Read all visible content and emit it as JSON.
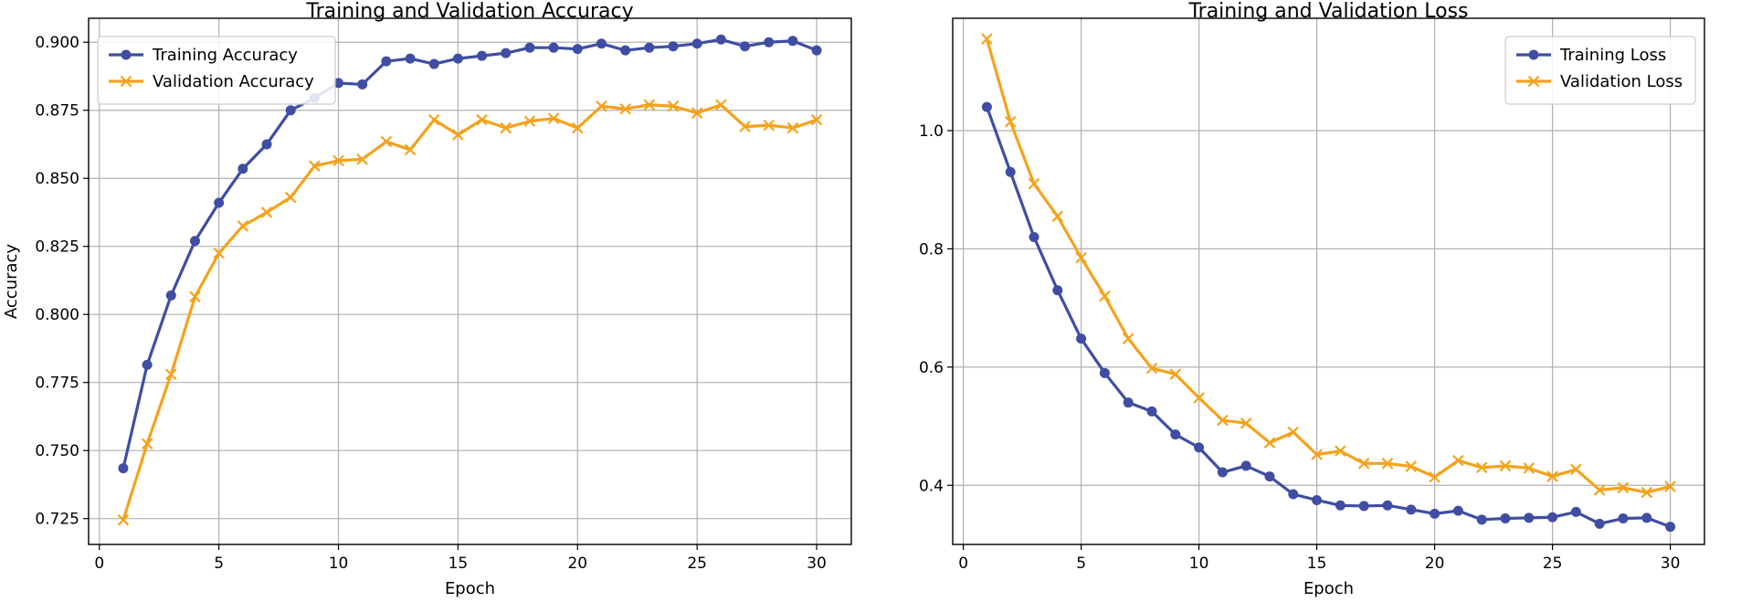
{
  "chart_data": [
    {
      "type": "line",
      "title": "Training and Validation Accuracy",
      "xlabel": "Epoch",
      "ylabel": "Accuracy",
      "xlim": [
        -0.45,
        31.45
      ],
      "ylim": [
        0.7155,
        0.9088
      ],
      "xticks": [
        0,
        5,
        10,
        15,
        20,
        25,
        30
      ],
      "yticks": [
        0.725,
        0.75,
        0.775,
        0.8,
        0.825,
        0.85,
        0.875,
        0.9
      ],
      "ytick_format": 3,
      "grid": true,
      "legend_position": "top-left",
      "x": [
        1,
        2,
        3,
        4,
        5,
        6,
        7,
        8,
        9,
        10,
        11,
        12,
        13,
        14,
        15,
        16,
        17,
        18,
        19,
        20,
        21,
        22,
        23,
        24,
        25,
        26,
        27,
        28,
        29,
        30
      ],
      "series": [
        {
          "name": "Training Accuracy",
          "color": "#3f4ea3",
          "marker": "circle",
          "values": [
            0.7435,
            0.7815,
            0.807,
            0.827,
            0.841,
            0.8535,
            0.8625,
            0.875,
            0.8795,
            0.885,
            0.8845,
            0.893,
            0.894,
            0.892,
            0.894,
            0.895,
            0.896,
            0.898,
            0.898,
            0.8975,
            0.8995,
            0.897,
            0.898,
            0.8985,
            0.8995,
            0.901,
            0.8985,
            0.9,
            0.9005,
            0.897
          ]
        },
        {
          "name": "Validation Accuracy",
          "color": "#f5a21b",
          "marker": "x",
          "values": [
            0.7245,
            0.7525,
            0.778,
            0.8065,
            0.8225,
            0.8325,
            0.8375,
            0.843,
            0.8545,
            0.8565,
            0.857,
            0.8635,
            0.8605,
            0.8715,
            0.866,
            0.8715,
            0.8685,
            0.871,
            0.872,
            0.8685,
            0.8765,
            0.8755,
            0.877,
            0.8765,
            0.874,
            0.877,
            0.869,
            0.8695,
            0.8685,
            0.8715
          ]
        }
      ]
    },
    {
      "type": "line",
      "title": "Training and Validation Loss",
      "xlabel": "Epoch",
      "ylabel": "",
      "xlim": [
        -0.45,
        31.45
      ],
      "ylim": [
        0.3,
        1.19
      ],
      "xticks": [
        0,
        5,
        10,
        15,
        20,
        25,
        30
      ],
      "yticks": [
        0.4,
        0.6,
        0.8,
        1.0
      ],
      "ytick_format": 1,
      "grid": true,
      "legend_position": "top-right",
      "x": [
        1,
        2,
        3,
        4,
        5,
        6,
        7,
        8,
        9,
        10,
        11,
        12,
        13,
        14,
        15,
        16,
        17,
        18,
        19,
        20,
        21,
        22,
        23,
        24,
        25,
        26,
        27,
        28,
        29,
        30
      ],
      "series": [
        {
          "name": "Training Loss",
          "color": "#3f4ea3",
          "marker": "circle",
          "values": [
            1.04,
            0.93,
            0.82,
            0.73,
            0.648,
            0.59,
            0.54,
            0.525,
            0.486,
            0.464,
            0.422,
            0.433,
            0.415,
            0.385,
            0.375,
            0.366,
            0.365,
            0.366,
            0.359,
            0.352,
            0.357,
            0.342,
            0.344,
            0.345,
            0.346,
            0.355,
            0.335,
            0.344,
            0.345,
            0.33
          ]
        },
        {
          "name": "Validation Loss",
          "color": "#f5a21b",
          "marker": "x",
          "values": [
            1.155,
            1.015,
            0.91,
            0.855,
            0.785,
            0.72,
            0.648,
            0.598,
            0.588,
            0.548,
            0.51,
            0.505,
            0.472,
            0.49,
            0.452,
            0.458,
            0.437,
            0.437,
            0.432,
            0.414,
            0.442,
            0.43,
            0.433,
            0.429,
            0.415,
            0.427,
            0.392,
            0.396,
            0.388,
            0.398
          ]
        }
      ]
    }
  ]
}
